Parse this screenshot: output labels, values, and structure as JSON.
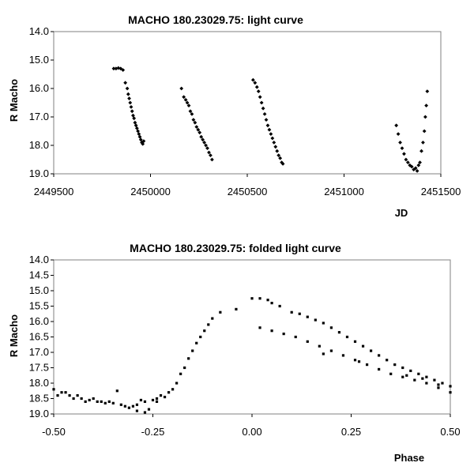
{
  "chart_data": [
    {
      "type": "scatter",
      "title": "MACHO 180.23029.75: light curve",
      "xlabel": "JD",
      "ylabel": "R Macho",
      "xlim": [
        2449500,
        2451500
      ],
      "ylim": [
        19.0,
        14.0
      ],
      "y_inverted": true,
      "x_ticks": [
        "2449500",
        "2450000",
        "2450500",
        "2451000",
        "2451500"
      ],
      "y_ticks": [
        "14.0",
        "15.0",
        "16.0",
        "17.0",
        "18.0",
        "19.0"
      ],
      "grid": false,
      "legend": "none",
      "marker_color": "#000000",
      "series": [
        {
          "x": [
            2449810,
            2449822,
            2449834,
            2449846,
            2449858,
            2449870,
            2449880,
            2449885,
            2449890,
            2449895,
            2449900,
            2449905,
            2449910,
            2449915,
            2449920,
            2449925,
            2449930,
            2449935,
            2449940,
            2449945,
            2449950,
            2449955,
            2449960,
            2449965,
            2450160,
            2450172,
            2450182,
            2450190,
            2450198,
            2450206,
            2450214,
            2450222,
            2450230,
            2450238,
            2450246,
            2450254,
            2450262,
            2450270,
            2450278,
            2450286,
            2450294,
            2450302,
            2450310,
            2450318,
            2450530,
            2450540,
            2450550,
            2450558,
            2450566,
            2450574,
            2450582,
            2450590,
            2450598,
            2450606,
            2450614,
            2450622,
            2450630,
            2450638,
            2450646,
            2450654,
            2450662,
            2450670,
            2450678,
            2450684,
            2451270,
            2451280,
            2451290,
            2451300,
            2451310,
            2451320,
            2451330,
            2451340,
            2451350,
            2451360,
            2451370,
            2451378,
            2451385,
            2451392,
            2451400,
            2451408,
            2451415,
            2451420,
            2451425,
            2451430
          ],
          "y": [
            15.3,
            15.3,
            15.28,
            15.3,
            15.35,
            15.8,
            16.0,
            16.2,
            16.35,
            16.5,
            16.65,
            16.8,
            16.95,
            17.05,
            17.2,
            17.3,
            17.4,
            17.5,
            17.6,
            17.7,
            17.8,
            17.9,
            17.95,
            17.85,
            16.0,
            16.3,
            16.4,
            16.5,
            16.6,
            16.8,
            16.9,
            17.1,
            17.2,
            17.35,
            17.45,
            17.55,
            17.7,
            17.8,
            17.9,
            18.0,
            18.1,
            18.25,
            18.35,
            18.5,
            15.7,
            15.8,
            15.95,
            16.1,
            16.3,
            16.5,
            16.7,
            16.9,
            17.1,
            17.3,
            17.45,
            17.6,
            17.75,
            17.9,
            18.05,
            18.2,
            18.35,
            18.45,
            18.6,
            18.65,
            17.3,
            17.6,
            17.9,
            18.1,
            18.3,
            18.5,
            18.6,
            18.7,
            18.75,
            18.85,
            18.8,
            18.9,
            18.7,
            18.6,
            18.2,
            17.9,
            17.5,
            17.0,
            16.6,
            16.1
          ]
        }
      ]
    },
    {
      "type": "scatter",
      "title": "MACHO 180.23029.75: folded light curve",
      "xlabel": "Phase",
      "ylabel": "R Macho",
      "xlim": [
        -0.5,
        0.5
      ],
      "ylim": [
        19.0,
        14.0
      ],
      "y_inverted": true,
      "x_ticks": [
        "-0.50",
        "-0.25",
        "0.00",
        "0.25",
        "0.50"
      ],
      "y_ticks": [
        "14.0",
        "14.5",
        "15.0",
        "15.5",
        "16.0",
        "16.5",
        "17.0",
        "17.5",
        "18.0",
        "18.5",
        "19.0"
      ],
      "grid": false,
      "legend": "none",
      "marker_color": "#000000",
      "series": [
        {
          "x": [
            -0.49,
            -0.47,
            -0.45,
            -0.44,
            -0.42,
            -0.4,
            -0.38,
            -0.36,
            -0.35,
            -0.33,
            -0.31,
            -0.3,
            -0.29,
            -0.28,
            -0.27,
            -0.25,
            -0.24,
            -0.23,
            -0.21,
            -0.2,
            -0.19,
            -0.18,
            -0.17,
            -0.16,
            -0.15,
            -0.14,
            -0.13,
            -0.12,
            -0.11,
            -0.1,
            -0.08,
            -0.04,
            0.0,
            0.02,
            0.04,
            0.05,
            0.07,
            0.1,
            0.12,
            0.14,
            0.16,
            0.18,
            0.2,
            0.22,
            0.24,
            0.26,
            0.28,
            0.3,
            0.32,
            0.34,
            0.36,
            0.38,
            0.4,
            0.42,
            0.44,
            0.46,
            0.48,
            0.5,
            0.02,
            0.05,
            0.08,
            0.11,
            0.14,
            0.17,
            0.2,
            0.23,
            0.26,
            0.29,
            0.32,
            0.35,
            0.38,
            0.41,
            0.44,
            0.47,
            0.5,
            -0.5,
            -0.48,
            -0.46,
            -0.43,
            -0.41,
            -0.39,
            -0.37,
            -0.34,
            -0.32,
            -0.29,
            -0.27,
            -0.26,
            -0.24,
            -0.22,
            0.18,
            0.27,
            0.39,
            0.43,
            0.47
          ],
          "y": [
            18.4,
            18.3,
            18.5,
            18.4,
            18.6,
            18.5,
            18.6,
            18.6,
            18.65,
            18.7,
            18.8,
            18.75,
            18.7,
            18.55,
            18.6,
            18.55,
            18.5,
            18.4,
            18.3,
            18.2,
            18.0,
            17.7,
            17.5,
            17.2,
            16.95,
            16.7,
            16.5,
            16.3,
            16.1,
            15.9,
            15.7,
            15.6,
            15.25,
            15.25,
            15.3,
            15.4,
            15.5,
            15.7,
            15.75,
            15.85,
            15.95,
            16.05,
            16.2,
            16.35,
            16.5,
            16.65,
            16.8,
            16.95,
            17.1,
            17.25,
            17.4,
            17.5,
            17.6,
            17.7,
            17.8,
            17.9,
            18.0,
            18.1,
            16.2,
            16.3,
            16.4,
            16.5,
            16.65,
            16.8,
            16.95,
            17.1,
            17.25,
            17.4,
            17.55,
            17.7,
            17.8,
            17.9,
            18.0,
            18.15,
            18.3,
            18.2,
            18.3,
            18.4,
            18.5,
            18.55,
            18.6,
            18.65,
            18.25,
            18.75,
            18.9,
            18.95,
            18.85,
            18.6,
            18.45,
            17.05,
            17.3,
            17.75,
            17.85,
            18.05
          ]
        }
      ]
    }
  ]
}
